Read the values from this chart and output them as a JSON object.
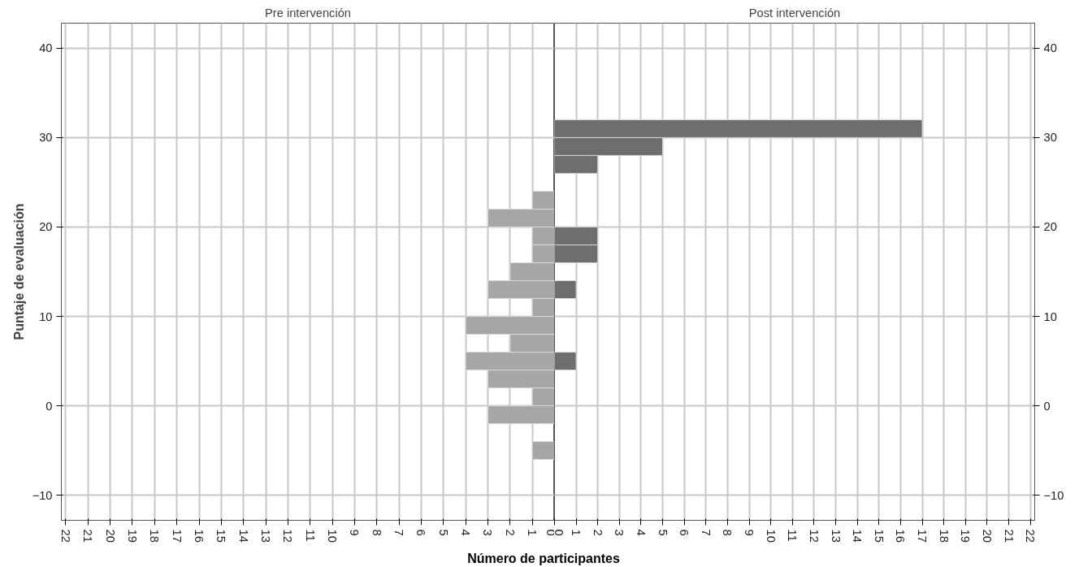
{
  "chart_data": [
    {
      "type": "histogram",
      "orientation": "horizontal",
      "title": "Pre intervención",
      "ylabel": "Puntaje de evaluación",
      "xlabel": "Número de participantes",
      "color": "#a6a6a6",
      "bins": [
        -6,
        -4,
        -2,
        0,
        2,
        4,
        6,
        8,
        10,
        12,
        14,
        16,
        18,
        20,
        22,
        24
      ],
      "values": [
        1,
        0,
        3,
        1,
        3,
        4,
        2,
        4,
        1,
        3,
        2,
        1,
        1,
        3,
        1
      ],
      "xlim": [
        22.2,
        0
      ],
      "xticks": [
        0,
        1,
        2,
        3,
        4,
        5,
        6,
        7,
        8,
        9,
        10,
        11,
        12,
        13,
        14,
        15,
        16,
        17,
        18,
        19,
        20,
        21,
        22
      ],
      "ylim": [
        -12.8,
        42.8
      ],
      "yticks": [
        -10,
        0,
        10,
        20,
        30,
        40
      ],
      "grid": true
    },
    {
      "type": "histogram",
      "orientation": "horizontal",
      "title": "Post intervención",
      "color": "#6e6e6e",
      "bins": [
        4,
        6,
        8,
        10,
        12,
        14,
        16,
        18,
        20,
        22,
        24,
        26,
        28,
        30,
        32
      ],
      "values": [
        1,
        0,
        0,
        0,
        1,
        0,
        2,
        2,
        0,
        0,
        0,
        2,
        5,
        17
      ],
      "xlim": [
        0,
        22.2
      ],
      "xticks": [
        0,
        1,
        2,
        3,
        4,
        5,
        6,
        7,
        8,
        9,
        10,
        11,
        12,
        13,
        14,
        15,
        16,
        17,
        18,
        19,
        20,
        21,
        22
      ],
      "ylim": [
        -12.8,
        42.8
      ],
      "yticks": [
        -10,
        0,
        10,
        20,
        30,
        40
      ],
      "grid": true
    }
  ]
}
